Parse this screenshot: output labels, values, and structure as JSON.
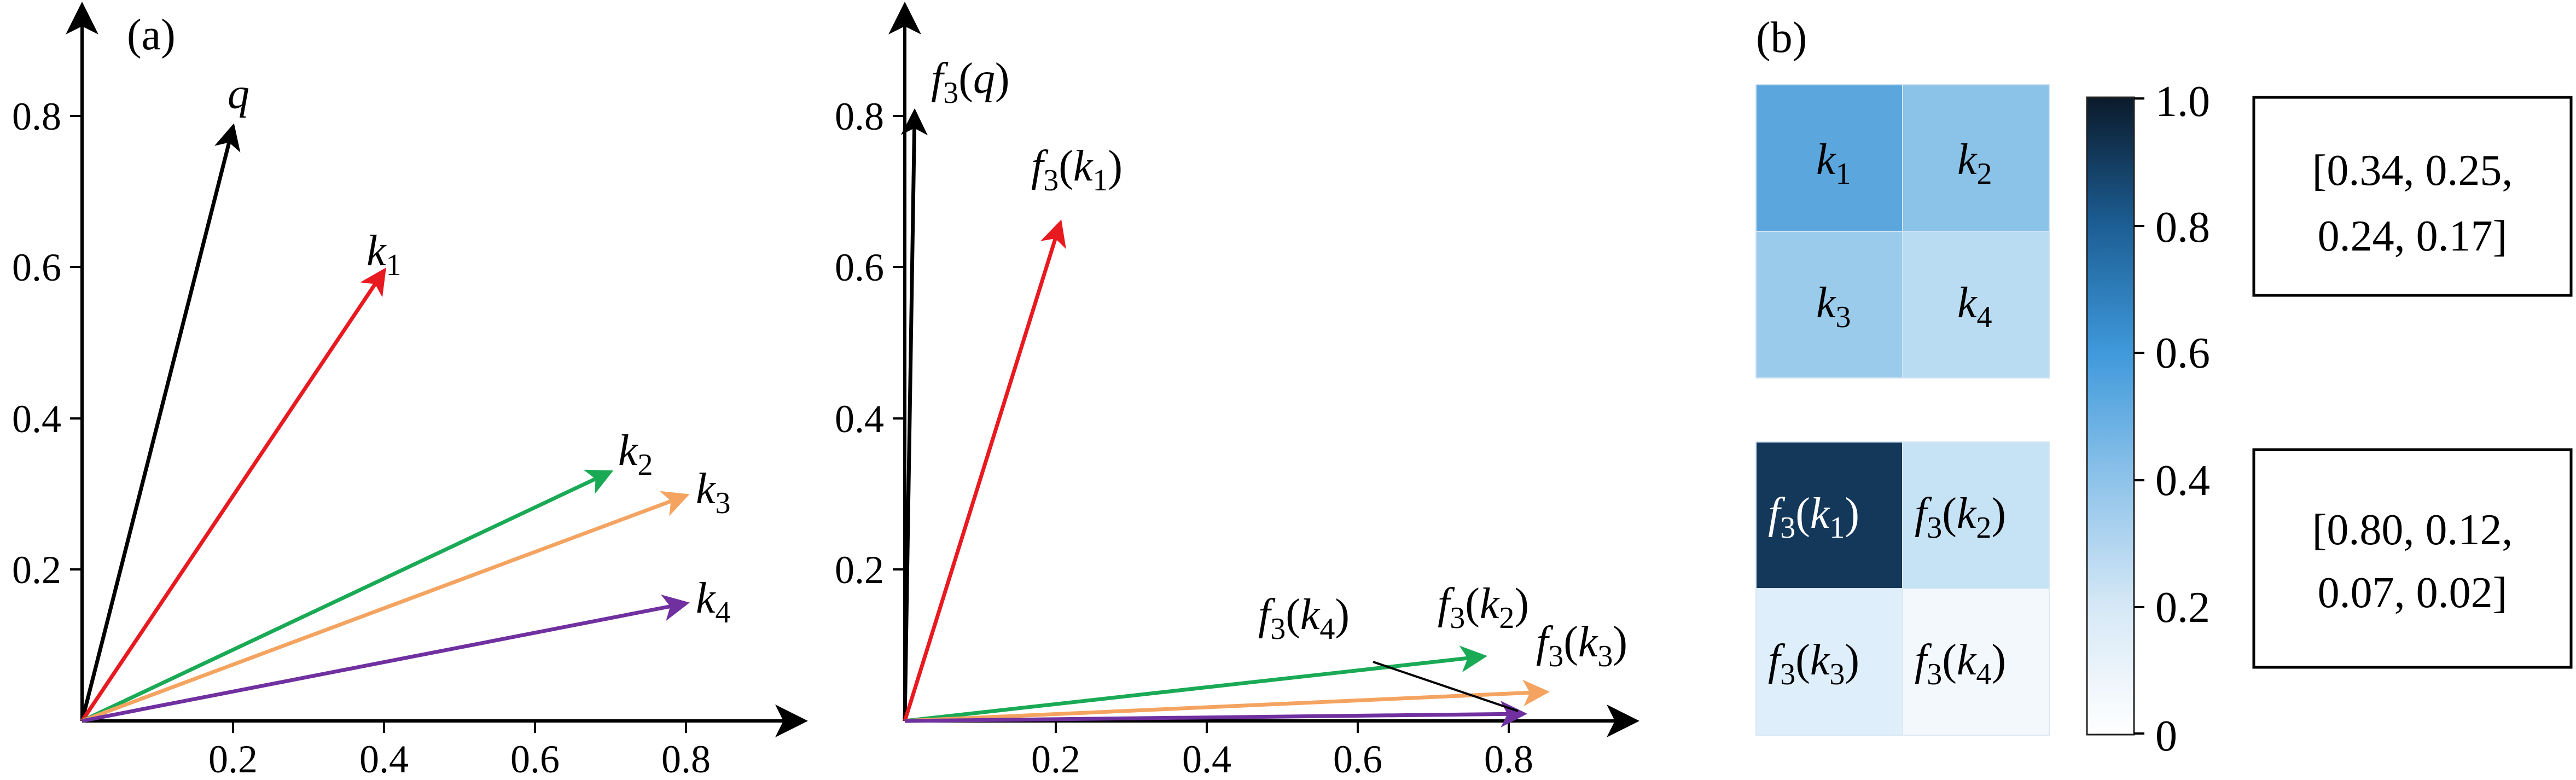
{
  "panels": {
    "a": "(a)",
    "b": "(b)"
  },
  "left_plot": {
    "xticks": [
      "0.2",
      "0.4",
      "0.6",
      "0.8"
    ],
    "yticks": [
      "0.2",
      "0.4",
      "0.6",
      "0.8"
    ],
    "vectors": [
      {
        "label": "q",
        "sub": "",
        "x": 0.2,
        "y": 0.8,
        "color": "#000000"
      },
      {
        "label": "k",
        "sub": "1",
        "x": 0.4,
        "y": 0.6,
        "color": "#e8191f"
      },
      {
        "label": "k",
        "sub": "2",
        "x": 0.7,
        "y": 0.33,
        "color": "#1aaa55"
      },
      {
        "label": "k",
        "sub": "3",
        "x": 0.8,
        "y": 0.3,
        "color": "#f4a460"
      },
      {
        "label": "k",
        "sub": "4",
        "x": 0.8,
        "y": 0.16,
        "color": "#7030a0"
      }
    ]
  },
  "right_plot": {
    "xticks": [
      "0.2",
      "0.4",
      "0.6",
      "0.8"
    ],
    "yticks": [
      "0.2",
      "0.4",
      "0.6",
      "0.8"
    ],
    "vectors": [
      {
        "label": "q",
        "x": 0.01,
        "y": 0.8,
        "color": "#000000"
      },
      {
        "label": "k1",
        "x": 0.21,
        "y": 0.66,
        "color": "#e8191f"
      },
      {
        "label": "k2",
        "x": 0.77,
        "y": 0.09,
        "color": "#1aaa55"
      },
      {
        "label": "k3",
        "x": 0.85,
        "y": 0.04,
        "color": "#f4a460"
      },
      {
        "label": "k4",
        "x": 0.82,
        "y": 0.01,
        "color": "#7030a0"
      }
    ],
    "labels": {
      "q": "f3(q)",
      "k1": "f3(k1)",
      "k2": "f3(k2)",
      "k3": "f3(k3)",
      "k4": "f3(k4)"
    }
  },
  "heatmap_top": {
    "cells": [
      {
        "label": "k",
        "sub": "1",
        "color": "#5ba6dc"
      },
      {
        "label": "k",
        "sub": "2",
        "color": "#8ac2e8"
      },
      {
        "label": "k",
        "sub": "3",
        "color": "#9acbeb"
      },
      {
        "label": "k",
        "sub": "4",
        "color": "#b9dcf2"
      }
    ],
    "vector_text": [
      "[0.34, 0.25,",
      "0.24, 0.17]"
    ]
  },
  "heatmap_bottom": {
    "cells": [
      {
        "label": "f3(k1)",
        "color": "#14385a",
        "light_text": true
      },
      {
        "label": "f3(k2)",
        "color": "#c6e2f5",
        "light_text": false
      },
      {
        "label": "f3(k3)",
        "color": "#deeefa",
        "light_text": false
      },
      {
        "label": "f3(k4)",
        "color": "#f3f8fc",
        "light_text": false
      }
    ],
    "vector_text": [
      "[0.80, 0.12,",
      "0.07, 0.02]"
    ]
  },
  "colorbar": {
    "ticks": [
      "1.0",
      "0.8",
      "0.6",
      "0.4",
      "0.2",
      "0"
    ],
    "colors": {
      "high": "#0b1a2a",
      "mid": "#2e8fd4",
      "low": "#ffffff"
    }
  }
}
